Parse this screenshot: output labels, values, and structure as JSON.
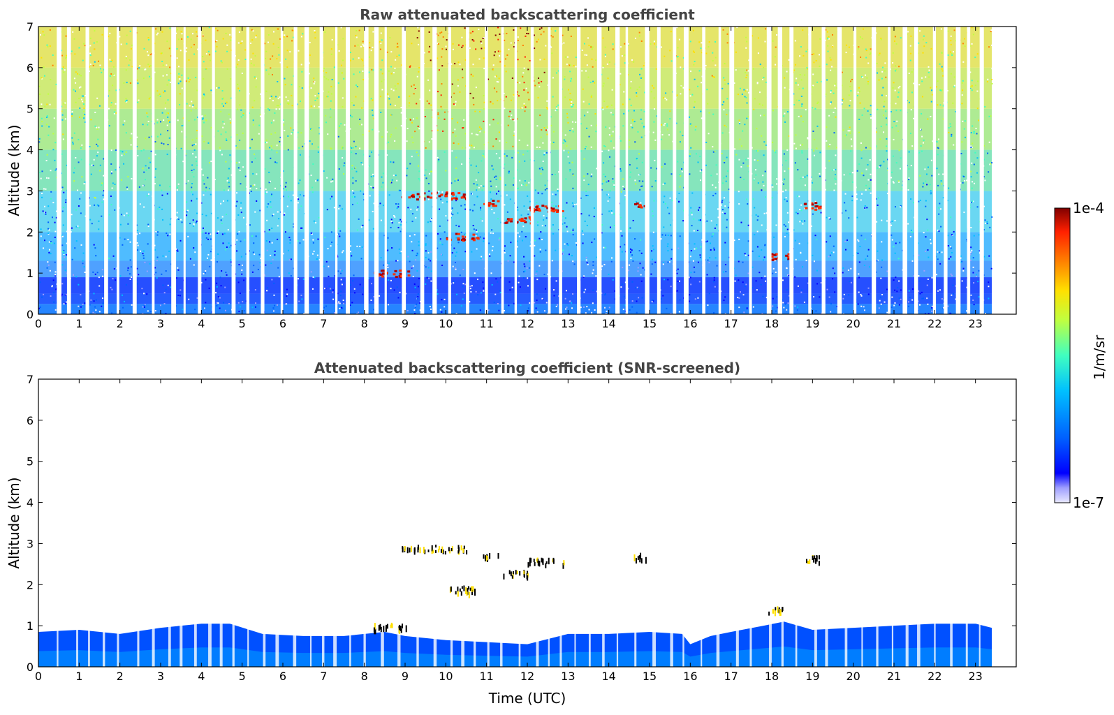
{
  "chart_data": [
    {
      "type": "heatmap",
      "title": "Raw attenuated backscattering coefficient",
      "xlabel": "",
      "ylabel": "Altitude (km)",
      "xlim": [
        0,
        24
      ],
      "ylim": [
        0,
        7
      ],
      "xticks": [
        "0",
        "1",
        "2",
        "3",
        "4",
        "5",
        "6",
        "7",
        "8",
        "9",
        "10",
        "11",
        "12",
        "13",
        "14",
        "15",
        "16",
        "17",
        "18",
        "19",
        "20",
        "21",
        "22",
        "23"
      ],
      "yticks": [
        "0",
        "1",
        "2",
        "3",
        "4",
        "5",
        "6",
        "7"
      ],
      "data_end_hour": 23.4,
      "boundary_layer_top_km": 0.9,
      "cloud_layers": [
        {
          "t_start": 8.9,
          "t_end": 10.5,
          "alt_km": 2.9
        },
        {
          "t_start": 10.9,
          "t_end": 11.3,
          "alt_km": 2.7
        },
        {
          "t_start": 11.4,
          "t_end": 12.1,
          "alt_km": 2.3
        },
        {
          "t_start": 12.0,
          "t_end": 12.9,
          "alt_km": 2.6
        },
        {
          "t_start": 10.0,
          "t_end": 10.8,
          "alt_km": 1.9
        },
        {
          "t_start": 8.2,
          "t_end": 9.1,
          "alt_km": 1.0
        },
        {
          "t_start": 17.9,
          "t_end": 18.4,
          "alt_km": 1.4
        },
        {
          "t_start": 14.6,
          "t_end": 14.9,
          "alt_km": 2.7
        },
        {
          "t_start": 18.7,
          "t_end": 19.2,
          "alt_km": 2.65
        }
      ]
    },
    {
      "type": "heatmap",
      "title": "Attenuated backscattering coefficient (SNR-screened)",
      "xlabel": "Time (UTC)",
      "ylabel": "Altitude (km)",
      "xlim": [
        0,
        24
      ],
      "ylim": [
        0,
        7
      ],
      "xticks": [
        "0",
        "1",
        "2",
        "3",
        "4",
        "5",
        "6",
        "7",
        "8",
        "9",
        "10",
        "11",
        "12",
        "13",
        "14",
        "15",
        "16",
        "17",
        "18",
        "19",
        "20",
        "21",
        "22",
        "23"
      ],
      "yticks": [
        "0",
        "1",
        "2",
        "3",
        "4",
        "5",
        "6",
        "7"
      ],
      "boundary_layer_top": {
        "t": [
          0,
          1,
          2,
          3,
          4,
          4.7,
          5.5,
          6.5,
          7.5,
          8.5,
          9,
          10,
          11,
          12,
          13,
          14,
          15,
          15.8,
          16,
          16.5,
          17,
          17.8,
          18.3,
          19,
          20,
          21,
          22,
          23,
          23.4
        ],
        "alt_km": [
          0.85,
          0.9,
          0.8,
          0.95,
          1.05,
          1.05,
          0.8,
          0.75,
          0.75,
          0.85,
          0.75,
          0.65,
          0.6,
          0.55,
          0.8,
          0.8,
          0.85,
          0.8,
          0.55,
          0.75,
          0.85,
          1.0,
          1.1,
          0.9,
          0.95,
          1.0,
          1.05,
          1.05,
          0.95
        ]
      },
      "colorbar": {
        "min_label": "1e-7",
        "max_label": "1e-4",
        "unit": "1/m/sr",
        "colors": [
          "#e8e8ff",
          "#a0a0ff",
          "#0000ff",
          "#0060ff",
          "#00c0ff",
          "#40ffc0",
          "#c0ff40",
          "#ffe000",
          "#ff8000",
          "#ff2000",
          "#800000"
        ]
      }
    }
  ]
}
